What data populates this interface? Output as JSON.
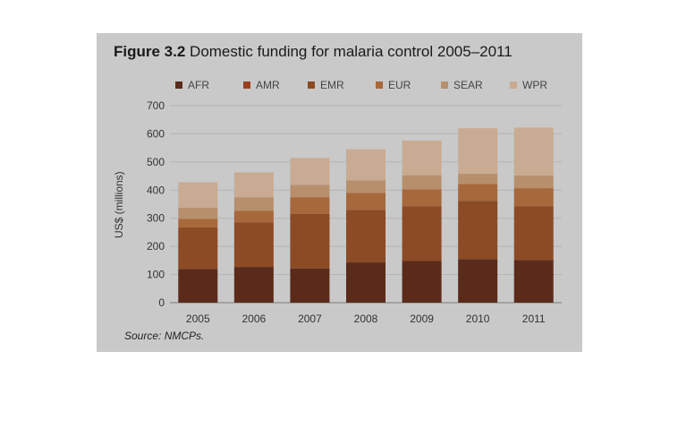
{
  "figure": {
    "title_bold": "Figure 3.2",
    "title_rest": " Domestic funding for malaria control 2005–2011",
    "source_label": "Source:",
    "source_value": " NMCPs."
  },
  "chart_data": {
    "type": "bar",
    "stacked": true,
    "title": "Figure 3.2 Domestic funding for malaria control 2005–2011",
    "ylabel": "US$ (millions)",
    "xlabel": "",
    "ylim": [
      0,
      700
    ],
    "yticks": [
      0,
      100,
      200,
      300,
      400,
      500,
      600,
      700
    ],
    "grid": true,
    "legend_position": "top",
    "categories": [
      "2005",
      "2006",
      "2007",
      "2008",
      "2009",
      "2010",
      "2011"
    ],
    "series": [
      {
        "name": "AFR",
        "color": "#5a2b1a",
        "values": [
          120,
          127,
          122,
          143,
          148,
          155,
          152
        ]
      },
      {
        "name": "AMR",
        "color": "#9a3e20",
        "values": [
          0,
          0,
          0,
          0,
          0,
          0,
          0
        ]
      },
      {
        "name": "EMR",
        "color": "#8c4a25",
        "values": [
          148,
          158,
          193,
          187,
          195,
          207,
          190
        ]
      },
      {
        "name": "EUR",
        "color": "#a7683b",
        "values": [
          30,
          42,
          60,
          60,
          60,
          60,
          65
        ]
      },
      {
        "name": "SEAR",
        "color": "#b78f6d",
        "values": [
          40,
          48,
          44,
          45,
          50,
          36,
          45
        ]
      },
      {
        "name": "WPR",
        "color": "#c8ab92",
        "values": [
          90,
          88,
          95,
          110,
          123,
          162,
          170
        ]
      }
    ]
  }
}
